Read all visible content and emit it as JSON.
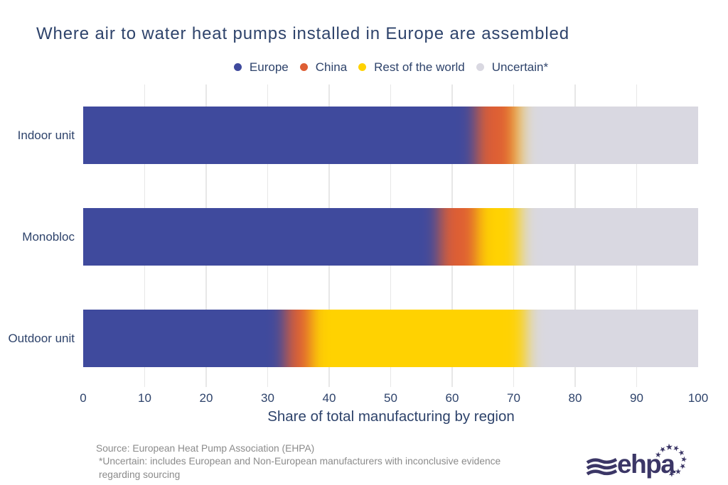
{
  "title": "Where air to water heat pumps installed in Europe are assembled",
  "chart_data": {
    "type": "bar",
    "orientation": "horizontal",
    "stacked": true,
    "categories": [
      "Indoor unit",
      "Monobloc",
      "Outdoor unit"
    ],
    "series": [
      {
        "name": "Europe",
        "color": "#3f4a9d",
        "values": [
          64,
          58,
          33
        ]
      },
      {
        "name": "China",
        "color": "#de5e34",
        "values": [
          6,
          6,
          4
        ]
      },
      {
        "name": "Rest of the world",
        "color": "#ffd201",
        "values": [
          1,
          7,
          35
        ]
      },
      {
        "name": "Uncertain*",
        "color": "#d9d8e1",
        "values": [
          29,
          29,
          28
        ]
      }
    ],
    "xlabel": "Share of total manufacturing by region",
    "xlim": [
      0,
      100
    ],
    "xticks": [
      0,
      10,
      20,
      30,
      40,
      50,
      60,
      70,
      80,
      90,
      100
    ],
    "grid": true,
    "legend_position": "top"
  },
  "footer": {
    "lines": [
      "Source: European Heat Pump Association (EHPA)",
      "*Uncertain: includes European and Non-European manufacturers with inconclusive evidence",
      "regarding sourcing"
    ]
  },
  "logo": {
    "text": "ehpa"
  },
  "style": {
    "text_color": "#2e436b",
    "footer_color": "#8b8b8b",
    "grid_color": "#e7e7e7",
    "logo_color": "#3b3666",
    "background": "#ffffff"
  }
}
